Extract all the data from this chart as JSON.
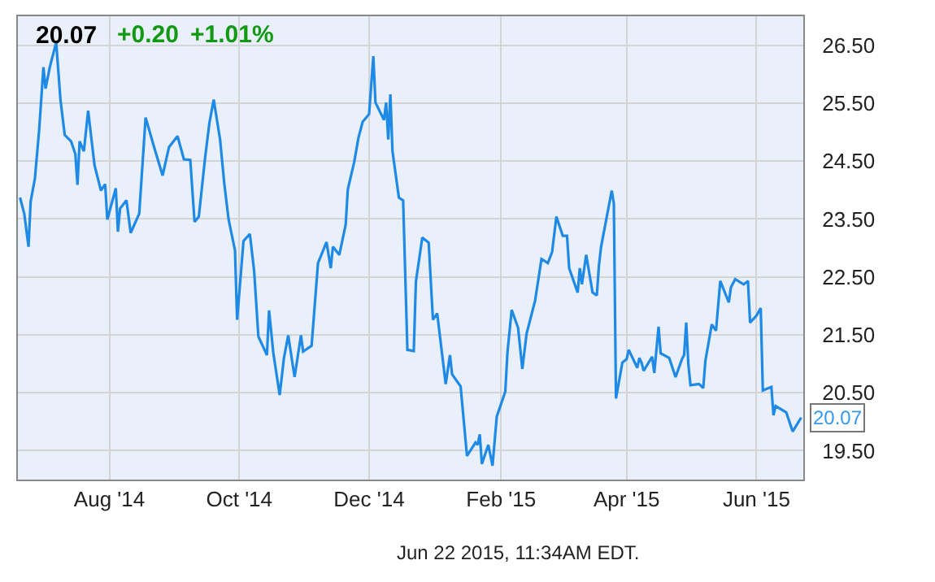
{
  "chart_data": {
    "type": "line",
    "title": "20.07",
    "annotations": [
      "+0.20",
      "+1.01%",
      "Jun 22 2015, 11:34AM EDT."
    ],
    "x": [
      "2014-06-20",
      "2014-06-22",
      "2014-06-24",
      "2014-06-25",
      "2014-06-27",
      "2014-06-29",
      "2014-07-01",
      "2014-07-02",
      "2014-07-04",
      "2014-07-07",
      "2014-07-09",
      "2014-07-11",
      "2014-07-14",
      "2014-07-16",
      "2014-07-17",
      "2014-07-18",
      "2014-07-20",
      "2014-07-22",
      "2014-07-25",
      "2014-07-28",
      "2014-07-30",
      "2014-07-31",
      "2014-08-04",
      "2014-08-05",
      "2014-08-06",
      "2014-08-09",
      "2014-08-11",
      "2014-08-15",
      "2014-08-18",
      "2014-08-22",
      "2014-08-26",
      "2014-08-29",
      "2014-09-02",
      "2014-09-05",
      "2014-09-08",
      "2014-09-10",
      "2014-09-12",
      "2014-09-15",
      "2014-09-17",
      "2014-09-19",
      "2014-09-22",
      "2014-09-24",
      "2014-09-26",
      "2014-09-29",
      "2014-09-30",
      "2014-10-03",
      "2014-10-06",
      "2014-10-08",
      "2014-10-10",
      "2014-10-14",
      "2014-10-15",
      "2014-10-17",
      "2014-10-20",
      "2014-10-22",
      "2014-10-24",
      "2014-10-27",
      "2014-10-30",
      "2014-10-31",
      "2014-11-04",
      "2014-11-07",
      "2014-11-11",
      "2014-11-13",
      "2014-11-14",
      "2014-11-17",
      "2014-11-20",
      "2014-11-21",
      "2014-11-24",
      "2014-11-26",
      "2014-11-28",
      "2014-12-01",
      "2014-12-03",
      "2014-12-04",
      "2014-12-08",
      "2014-12-09",
      "2014-12-10",
      "2014-12-11",
      "2014-12-12",
      "2014-12-15",
      "2014-12-17",
      "2014-12-19",
      "2014-12-22",
      "2014-12-23",
      "2014-12-26",
      "2014-12-29",
      "2014-12-31",
      "2015-01-02",
      "2015-01-06",
      "2015-01-08",
      "2015-01-09",
      "2015-01-13",
      "2015-01-16",
      "2015-01-20",
      "2015-01-21",
      "2015-01-22",
      "2015-01-23",
      "2015-01-26",
      "2015-01-28",
      "2015-01-30",
      "2015-02-03",
      "2015-02-04",
      "2015-02-06",
      "2015-02-09",
      "2015-02-11",
      "2015-02-13",
      "2015-02-17",
      "2015-02-20",
      "2015-02-23",
      "2015-02-25",
      "2015-02-27",
      "2015-03-02",
      "2015-03-04",
      "2015-03-05",
      "2015-03-09",
      "2015-03-10",
      "2015-03-11",
      "2015-03-13",
      "2015-03-16",
      "2015-03-18",
      "2015-03-19",
      "2015-03-20",
      "2015-03-25",
      "2015-03-26",
      "2015-03-27",
      "2015-03-30",
      "2015-04-01",
      "2015-04-02",
      "2015-04-06",
      "2015-04-07",
      "2015-04-08",
      "2015-04-09",
      "2015-04-13",
      "2015-04-14",
      "2015-04-16",
      "2015-04-17",
      "2015-04-21",
      "2015-04-24",
      "2015-04-27",
      "2015-04-28",
      "2015-04-29",
      "2015-04-30",
      "2015-05-01",
      "2015-05-05",
      "2015-05-07",
      "2015-05-08",
      "2015-05-11",
      "2015-05-13",
      "2015-05-15",
      "2015-05-19",
      "2015-05-20",
      "2015-05-22",
      "2015-05-26",
      "2015-05-28",
      "2015-05-29",
      "2015-06-01",
      "2015-06-03",
      "2015-06-04",
      "2015-06-08",
      "2015-06-09",
      "2015-06-10",
      "2015-06-15",
      "2015-06-18",
      "2015-06-22"
    ],
    "series": [
      {
        "color": "#1f8ae6",
        "values": [
          23.87,
          23.59,
          23.02,
          23.8,
          24.2,
          25.04,
          26.12,
          25.75,
          26.12,
          26.55,
          25.56,
          24.95,
          24.84,
          24.62,
          24.09,
          24.84,
          24.67,
          25.37,
          24.43,
          23.99,
          24.1,
          23.49,
          24.03,
          23.28,
          23.68,
          23.82,
          23.26,
          23.59,
          25.25,
          24.74,
          24.25,
          24.74,
          24.93,
          24.53,
          24.52,
          23.45,
          23.54,
          24.57,
          25.16,
          25.56,
          24.87,
          24.1,
          23.49,
          22.96,
          21.76,
          23.12,
          23.24,
          22.6,
          21.47,
          21.15,
          21.92,
          21.19,
          20.46,
          21.1,
          21.49,
          20.77,
          21.49,
          21.21,
          21.31,
          22.74,
          23.1,
          22.65,
          23.02,
          22.88,
          23.4,
          24.01,
          24.48,
          24.9,
          25.18,
          25.31,
          26.31,
          25.51,
          25.21,
          25.51,
          24.87,
          25.65,
          24.67,
          23.87,
          23.82,
          21.24,
          21.22,
          22.42,
          23.18,
          23.09,
          21.76,
          21.87,
          20.65,
          21.15,
          20.82,
          20.61,
          19.41,
          19.64,
          19.6,
          19.78,
          19.27,
          19.6,
          19.24,
          20.09,
          20.52,
          21.19,
          21.93,
          21.62,
          20.91,
          21.52,
          22.09,
          22.81,
          22.74,
          22.93,
          23.54,
          23.21,
          23.21,
          22.65,
          22.23,
          22.65,
          22.37,
          22.88,
          22.23,
          22.18,
          22.7,
          23.02,
          23.99,
          23.77,
          20.4,
          21.02,
          21.08,
          21.24,
          20.93,
          21.1,
          21.02,
          20.88,
          21.12,
          20.84,
          21.64,
          21.18,
          21.1,
          20.77,
          21.08,
          21.15,
          21.71,
          20.99,
          20.63,
          20.65,
          20.58,
          21.05,
          21.68,
          21.57,
          22.43,
          22.06,
          22.32,
          22.46,
          22.37,
          22.43,
          21.71,
          21.83,
          21.96,
          20.54,
          20.6,
          20.11,
          20.27,
          20.16,
          19.83,
          20.07
        ],
        "value_labels": [
          null,
          null,
          null,
          null,
          null,
          null,
          null,
          null,
          null,
          null,
          null,
          null,
          null,
          null,
          null,
          null,
          null,
          null,
          null,
          null,
          null,
          null,
          null,
          null,
          null,
          null,
          null,
          null,
          null,
          null,
          null,
          null,
          null,
          null,
          null,
          null,
          null,
          null,
          null,
          null,
          null,
          null,
          null,
          null,
          null,
          null,
          null,
          null,
          null,
          null,
          null,
          null,
          null,
          null,
          null,
          null,
          null,
          null,
          null,
          null,
          null,
          null,
          null,
          null,
          null,
          null,
          null,
          null,
          null,
          null,
          null,
          null,
          null,
          null,
          null,
          null,
          null,
          null,
          null,
          null,
          null,
          null,
          null,
          null,
          null,
          null,
          null,
          null,
          null,
          null,
          null,
          null,
          null,
          null,
          null,
          null,
          null,
          null,
          null,
          null,
          null,
          null,
          null,
          null,
          null,
          null,
          null,
          null,
          null,
          null,
          null,
          null,
          null,
          null,
          null,
          null,
          null,
          null,
          null,
          null,
          null,
          null,
          null,
          null,
          null,
          null,
          null,
          null,
          null,
          null,
          null,
          null,
          null,
          null,
          null,
          null,
          null,
          null,
          null,
          null,
          null,
          null,
          null,
          null,
          null,
          null,
          null,
          null,
          null,
          null,
          null,
          null,
          null,
          null,
          null,
          null,
          null,
          null,
          null,
          null,
          null,
          "20.07"
        ]
      }
    ],
    "xlim": [
      "2014-06-19",
      "2015-06-23"
    ],
    "xticks": [
      {
        "value": "2014-08-01",
        "label": "Aug '14"
      },
      {
        "value": "2014-10-01",
        "label": "Oct '14"
      },
      {
        "value": "2014-12-01",
        "label": "Dec '14"
      },
      {
        "value": "2015-02-01",
        "label": "Feb '15"
      },
      {
        "value": "2015-04-01",
        "label": "Apr '15"
      },
      {
        "value": "2015-06-01",
        "label": "Jun '15"
      }
    ],
    "ylim": [
      19.0,
      27.0
    ],
    "yticks": [
      {
        "value": 19.5,
        "label": "19.50"
      },
      {
        "value": 20.5,
        "label": "20.50"
      },
      {
        "value": 21.5,
        "label": "21.50"
      },
      {
        "value": 22.5,
        "label": "22.50"
      },
      {
        "value": 23.5,
        "label": "23.50"
      },
      {
        "value": 24.5,
        "label": "24.50"
      },
      {
        "value": 25.5,
        "label": "25.50"
      },
      {
        "value": 26.5,
        "label": "26.50"
      }
    ],
    "grid": true,
    "legend": false,
    "marker": "none",
    "line_style": "solid"
  }
}
